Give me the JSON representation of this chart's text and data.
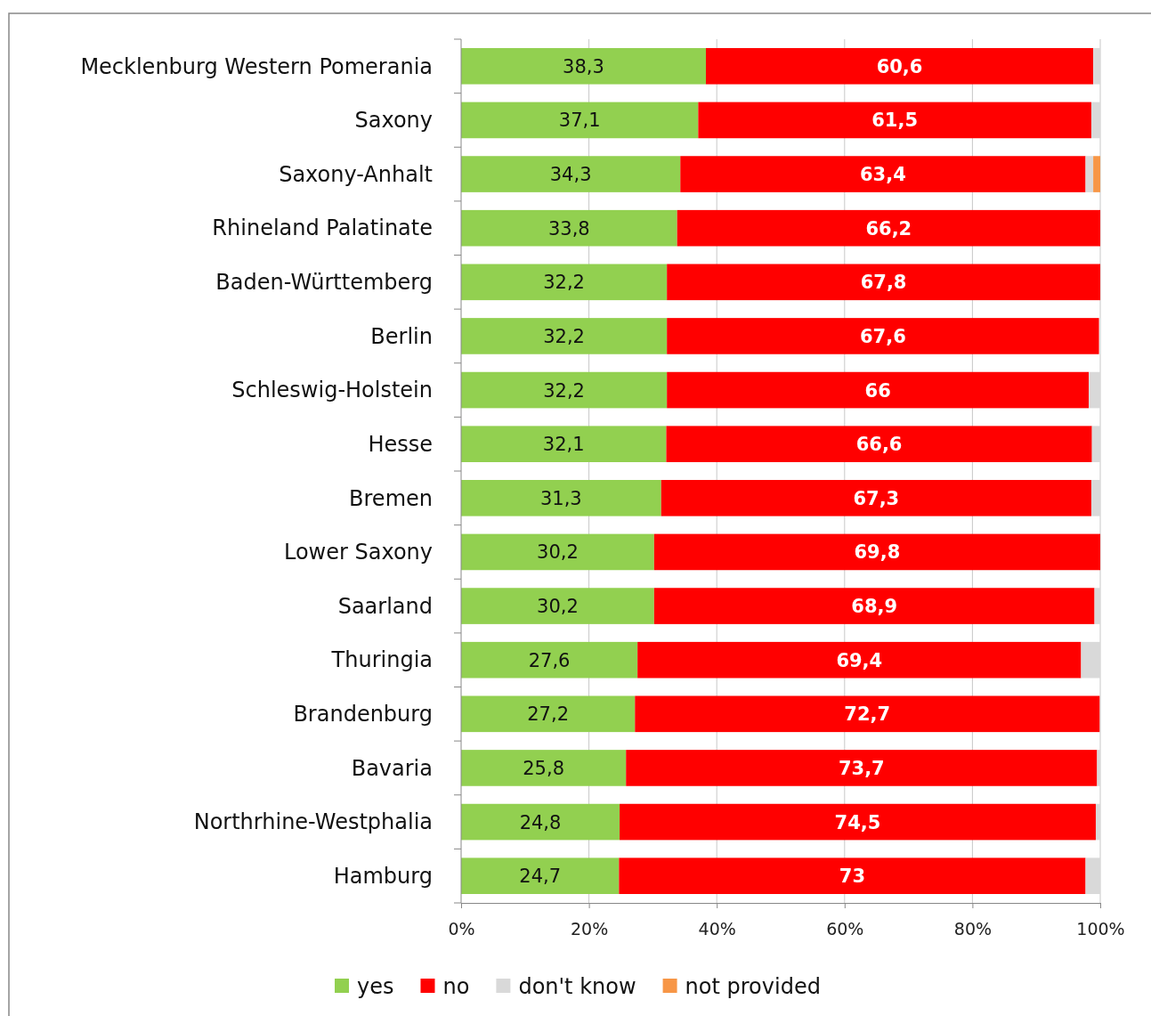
{
  "chart_data": {
    "type": "bar",
    "orientation": "horizontal",
    "stacked": true,
    "categories": [
      "Mecklenburg Western Pomerania",
      "Saxony",
      "Saxony-Anhalt",
      "Rhineland Palatinate",
      "Baden-Württemberg",
      "Berlin",
      "Schleswig-Holstein",
      "Hesse",
      "Bremen",
      "Lower Saxony",
      "Saarland",
      "Thuringia",
      "Brandenburg",
      "Bavaria",
      "Northrhine-Westphalia",
      "Hamburg"
    ],
    "series": [
      {
        "name": "yes",
        "color": "#92d050",
        "values": [
          38.3,
          37.1,
          34.3,
          33.8,
          32.2,
          32.2,
          32.2,
          32.1,
          31.3,
          30.2,
          30.2,
          27.6,
          27.2,
          25.8,
          24.8,
          24.7
        ],
        "value_labels": [
          "38,3",
          "37,1",
          "34,3",
          "33,8",
          "32,2",
          "32,2",
          "32,2",
          "32,1",
          "31,3",
          "30,2",
          "30,2",
          "27,6",
          "27,2",
          "25,8",
          "24,8",
          "24,7"
        ]
      },
      {
        "name": "no",
        "color": "#ff0000",
        "values": [
          60.6,
          61.5,
          63.4,
          66.2,
          67.8,
          67.6,
          66,
          66.6,
          67.3,
          69.8,
          68.9,
          69.4,
          72.7,
          73.7,
          74.5,
          73
        ],
        "value_labels": [
          "60,6",
          "61,5",
          "63,4",
          "66,2",
          "67,8",
          "67,6",
          "66",
          "66,6",
          "67,3",
          "69,8",
          "68,9",
          "69,4",
          "72,7",
          "73,7",
          "74,5",
          "73"
        ]
      },
      {
        "name": "don't know",
        "color": "#d9d9d9",
        "values": [
          1.1,
          1.4,
          1.2,
          0,
          0,
          null,
          1.8,
          1.3,
          1.4,
          0,
          0.9,
          3.0,
          null,
          0.5,
          0.7,
          2.3
        ]
      },
      {
        "name": "not provided",
        "color": "#f79646",
        "values": [
          0,
          0,
          1.1,
          0,
          0,
          0,
          0,
          0,
          0,
          0,
          0,
          0,
          0,
          0,
          0,
          0
        ]
      }
    ],
    "xlim": [
      0,
      100
    ],
    "xticks": [
      {
        "value": 0,
        "label": "0%"
      },
      {
        "value": 20,
        "label": "20%"
      },
      {
        "value": 40,
        "label": "40%"
      },
      {
        "value": 60,
        "label": "60%"
      },
      {
        "value": 80,
        "label": "80%"
      },
      {
        "value": 100,
        "label": "100%"
      }
    ],
    "grid": "x",
    "legend": "bottom"
  }
}
